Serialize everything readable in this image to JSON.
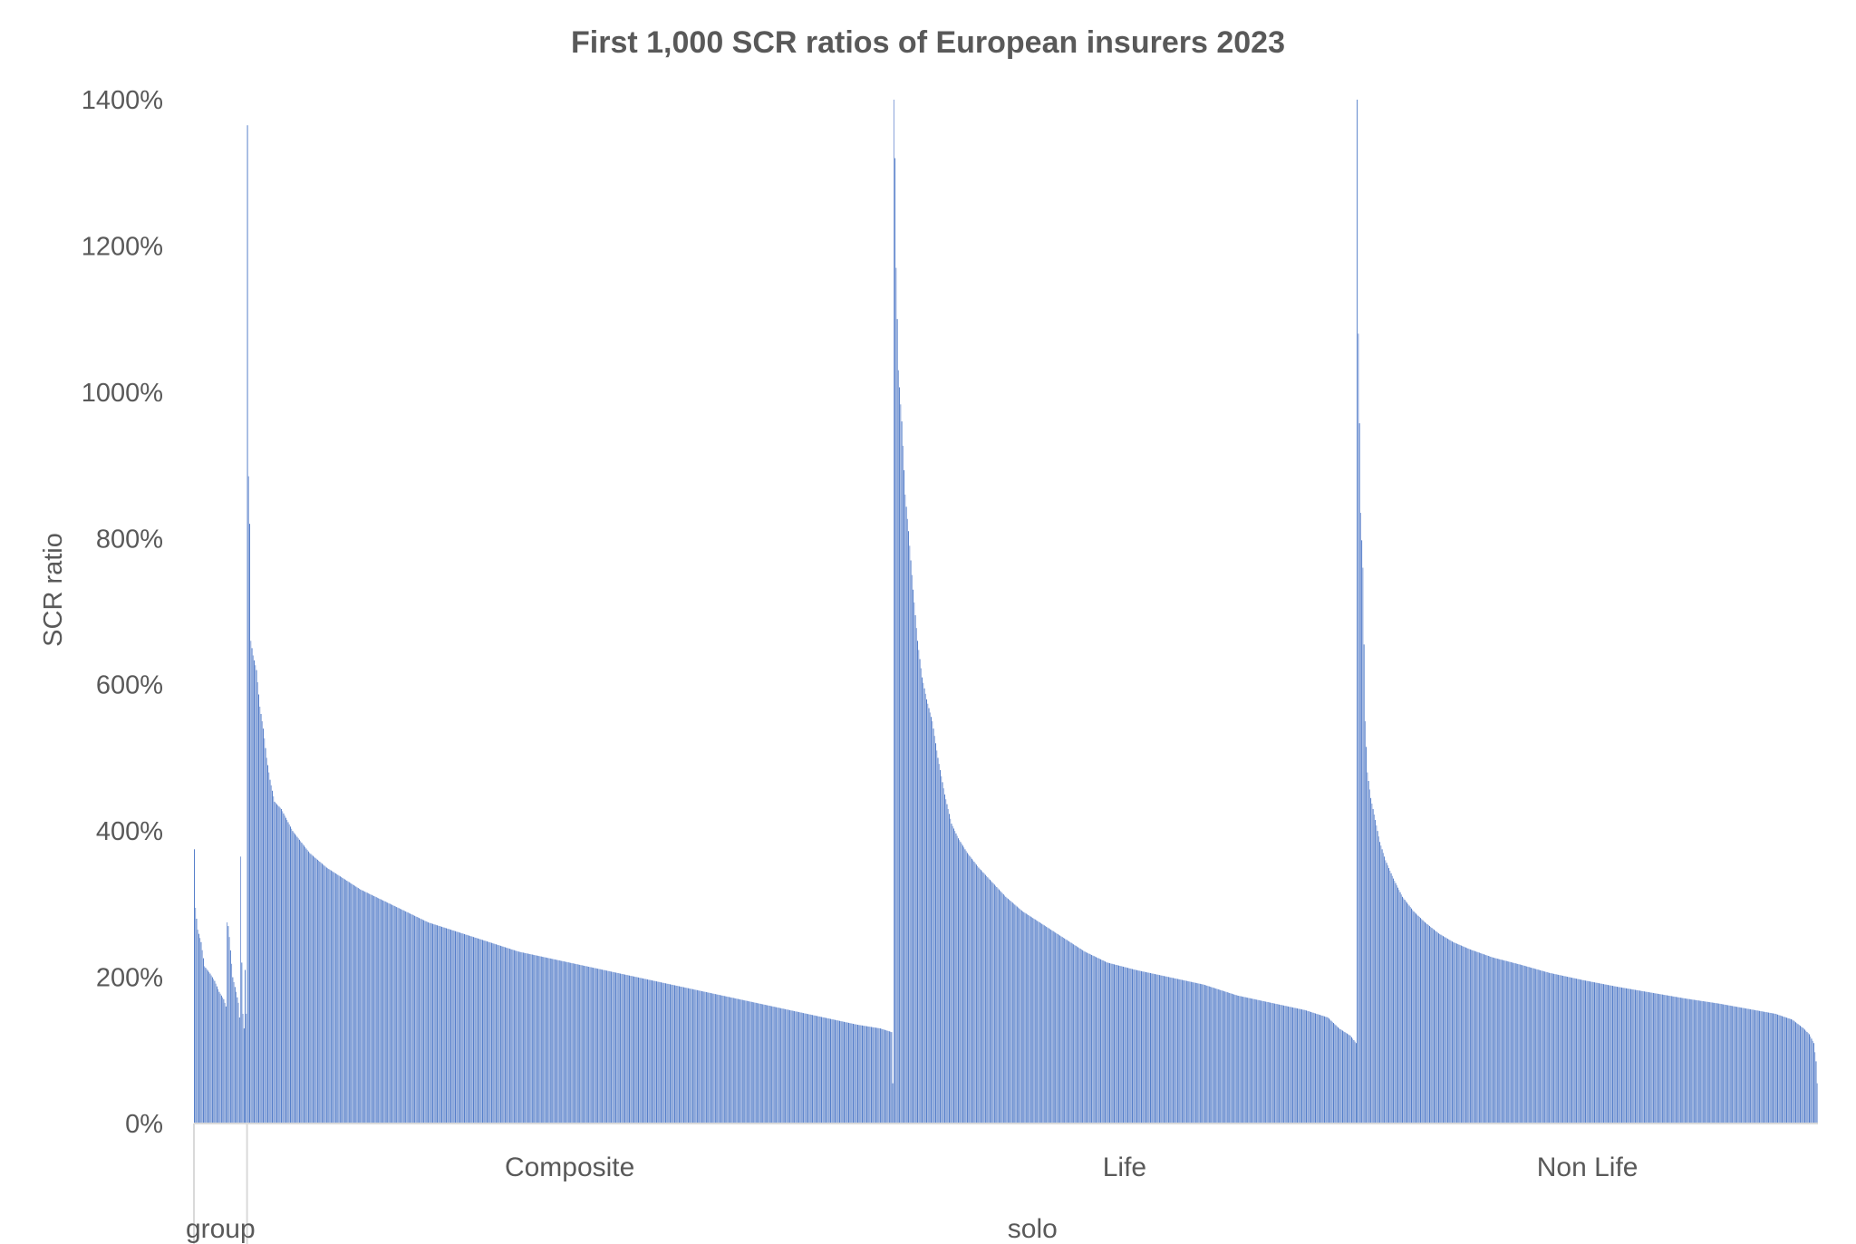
{
  "chart_data": {
    "type": "bar",
    "title": "First 1,000 SCR ratios of European insurers 2023",
    "ylabel": "SCR ratio",
    "xlabel": "",
    "ylim": [
      0,
      14
    ],
    "y_ticks": [
      "0%",
      "200%",
      "400%",
      "600%",
      "800%",
      "1000%",
      "1200%",
      "1400%"
    ],
    "y_format": "percent",
    "grid": false,
    "legend": "none",
    "bar_color": "#4472C4",
    "outer_groups": [
      "group",
      "solo"
    ],
    "segments": [
      {
        "outer": "group",
        "inner": "Composite",
        "show_inner_label": false,
        "points": [
          [
            0,
            3.75
          ],
          [
            1,
            2.95
          ],
          [
            3,
            2.65
          ],
          [
            6,
            2.48
          ],
          [
            9,
            2.15
          ],
          [
            14,
            2.05
          ],
          [
            18,
            1.95
          ],
          [
            22,
            1.8
          ],
          [
            26,
            1.7
          ],
          [
            28,
            1.6
          ],
          [
            29,
            2.75
          ],
          [
            30,
            2.7
          ],
          [
            31,
            2.55
          ],
          [
            34,
            2.0
          ],
          [
            37,
            1.8
          ],
          [
            39,
            1.65
          ],
          [
            40,
            1.45
          ],
          [
            41,
            3.65
          ],
          [
            42,
            2.2
          ],
          [
            43,
            1.5
          ],
          [
            44,
            1.3
          ]
        ]
      },
      {
        "outer": "group",
        "inner": "Life",
        "show_inner_label": false,
        "points": [
          [
            0,
            2.1
          ],
          [
            1,
            1.5
          ]
        ]
      },
      {
        "outer": "solo",
        "inner": "Composite",
        "show_inner_label": true,
        "points": [
          [
            0,
            13.65
          ],
          [
            1,
            8.85
          ],
          [
            2,
            8.2
          ],
          [
            3,
            6.6
          ],
          [
            5,
            6.4
          ],
          [
            8,
            6.2
          ],
          [
            11,
            5.7
          ],
          [
            14,
            5.4
          ],
          [
            17,
            5.0
          ],
          [
            20,
            4.7
          ],
          [
            24,
            4.4
          ],
          [
            30,
            4.3
          ],
          [
            40,
            4.0
          ],
          [
            55,
            3.7
          ],
          [
            70,
            3.5
          ],
          [
            85,
            3.35
          ],
          [
            100,
            3.2
          ],
          [
            120,
            3.05
          ],
          [
            140,
            2.9
          ],
          [
            160,
            2.75
          ],
          [
            180,
            2.65
          ],
          [
            210,
            2.5
          ],
          [
            240,
            2.35
          ],
          [
            270,
            2.25
          ],
          [
            300,
            2.15
          ],
          [
            330,
            2.05
          ],
          [
            360,
            1.95
          ],
          [
            390,
            1.85
          ],
          [
            420,
            1.75
          ],
          [
            450,
            1.65
          ],
          [
            480,
            1.55
          ],
          [
            510,
            1.45
          ],
          [
            540,
            1.35
          ],
          [
            560,
            1.3
          ],
          [
            570,
            1.25
          ]
        ]
      },
      {
        "outer": "solo",
        "inner": "Life",
        "show_inner_label": true,
        "points": [
          [
            0,
            0.55
          ],
          [
            1,
            14.0
          ],
          [
            2,
            13.2
          ],
          [
            3,
            11.7
          ],
          [
            5,
            10.3
          ],
          [
            8,
            9.6
          ],
          [
            11,
            8.6
          ],
          [
            14,
            8.1
          ],
          [
            18,
            7.3
          ],
          [
            22,
            6.6
          ],
          [
            26,
            6.1
          ],
          [
            30,
            5.8
          ],
          [
            35,
            5.5
          ],
          [
            40,
            5.0
          ],
          [
            46,
            4.5
          ],
          [
            52,
            4.1
          ],
          [
            58,
            3.9
          ],
          [
            66,
            3.7
          ],
          [
            76,
            3.5
          ],
          [
            88,
            3.3
          ],
          [
            100,
            3.1
          ],
          [
            115,
            2.9
          ],
          [
            130,
            2.75
          ],
          [
            150,
            2.55
          ],
          [
            170,
            2.35
          ],
          [
            190,
            2.2
          ],
          [
            215,
            2.1
          ],
          [
            245,
            2.0
          ],
          [
            275,
            1.9
          ],
          [
            305,
            1.75
          ],
          [
            335,
            1.65
          ],
          [
            365,
            1.55
          ],
          [
            385,
            1.45
          ],
          [
            395,
            1.3
          ],
          [
            405,
            1.2
          ],
          [
            410,
            1.1
          ]
        ]
      },
      {
        "outer": "solo",
        "inner": "Non Life",
        "show_inner_label": true,
        "points": [
          [
            0,
            14.0
          ],
          [
            1,
            10.8
          ],
          [
            3,
            8.35
          ],
          [
            5,
            7.6
          ],
          [
            7,
            5.5
          ],
          [
            9,
            4.8
          ],
          [
            12,
            4.45
          ],
          [
            16,
            4.15
          ],
          [
            20,
            3.85
          ],
          [
            25,
            3.6
          ],
          [
            32,
            3.35
          ],
          [
            40,
            3.1
          ],
          [
            50,
            2.9
          ],
          [
            60,
            2.75
          ],
          [
            72,
            2.6
          ],
          [
            85,
            2.48
          ],
          [
            100,
            2.38
          ],
          [
            120,
            2.27
          ],
          [
            145,
            2.17
          ],
          [
            170,
            2.06
          ],
          [
            200,
            1.96
          ],
          [
            230,
            1.87
          ],
          [
            260,
            1.79
          ],
          [
            290,
            1.71
          ],
          [
            320,
            1.64
          ],
          [
            345,
            1.57
          ],
          [
            370,
            1.5
          ],
          [
            385,
            1.42
          ],
          [
            395,
            1.3
          ],
          [
            400,
            1.22
          ],
          [
            404,
            1.1
          ],
          [
            406,
            0.85
          ],
          [
            407,
            0.55
          ]
        ]
      }
    ]
  }
}
